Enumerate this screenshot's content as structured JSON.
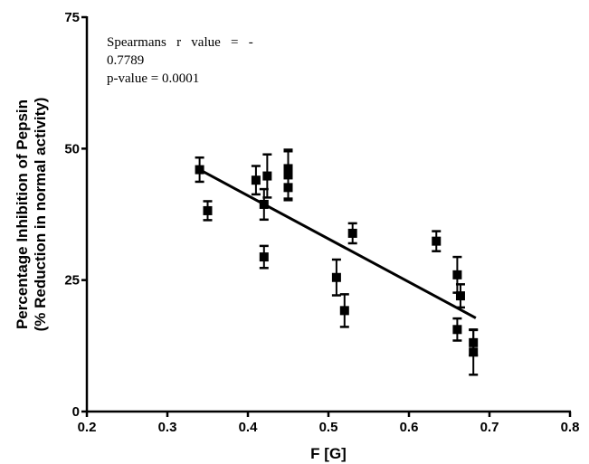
{
  "chart_data": {
    "type": "scatter",
    "xlabel": "F [G]",
    "ylabel_lines": [
      "Percentage Inhibition of Pepsin",
      "(% Reduction in normal activity)"
    ],
    "xlim": [
      0.2,
      0.8
    ],
    "ylim": [
      0,
      75
    ],
    "x_ticks": [
      0.2,
      0.3,
      0.4,
      0.5,
      0.6,
      0.7,
      0.8
    ],
    "x_tick_labels": [
      "0.2",
      "0.3",
      "0.4",
      "0.5",
      "0.6",
      "0.7",
      "0.8"
    ],
    "y_ticks": [
      0,
      25,
      50,
      75
    ],
    "y_tick_labels": [
      "0",
      "25",
      "50",
      "75"
    ],
    "grid": false,
    "annotation_lines": [
      "Spearmans   r   value   =   -",
      "0.7789",
      "p-value = 0.0001"
    ],
    "points": [
      {
        "x": 0.34,
        "y": 46.0,
        "err": 2.3
      },
      {
        "x": 0.35,
        "y": 38.2,
        "err": 1.8
      },
      {
        "x": 0.41,
        "y": 44.0,
        "err": 2.7
      },
      {
        "x": 0.42,
        "y": 39.4,
        "err": 2.9
      },
      {
        "x": 0.42,
        "y": 29.4,
        "err": 2.1
      },
      {
        "x": 0.424,
        "y": 44.8,
        "err": 4.1
      },
      {
        "x": 0.45,
        "y": 46.2,
        "err": 3.6
      },
      {
        "x": 0.45,
        "y": 45.0,
        "err": 4.5
      },
      {
        "x": 0.45,
        "y": 42.6,
        "err": 2.4
      },
      {
        "x": 0.51,
        "y": 25.5,
        "err": 3.4
      },
      {
        "x": 0.52,
        "y": 19.2,
        "err": 3.1
      },
      {
        "x": 0.53,
        "y": 33.9,
        "err": 1.9
      },
      {
        "x": 0.634,
        "y": 32.4,
        "err": 1.9
      },
      {
        "x": 0.66,
        "y": 26.0,
        "err": 3.4
      },
      {
        "x": 0.66,
        "y": 15.6,
        "err": 2.1
      },
      {
        "x": 0.664,
        "y": 22.0,
        "err": 2.2
      },
      {
        "x": 0.68,
        "y": 13.1,
        "err": 2.4
      },
      {
        "x": 0.68,
        "y": 11.3,
        "err": 4.3
      }
    ],
    "trendline": {
      "x": [
        0.34,
        0.683
      ],
      "y": [
        46.0,
        17.8
      ]
    }
  }
}
